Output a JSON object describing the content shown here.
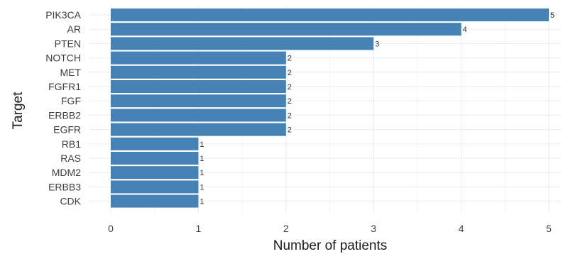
{
  "chart_data": {
    "type": "bar",
    "orientation": "horizontal",
    "title": "",
    "categories": [
      "PIK3CA",
      "AR",
      "PTEN",
      "NOTCH",
      "MET",
      "FGFR1",
      "FGF",
      "ERBB2",
      "EGFR",
      "RB1",
      "RAS",
      "MDM2",
      "ERBB3",
      "CDK"
    ],
    "values": [
      5,
      4,
      3,
      2,
      2,
      2,
      2,
      2,
      2,
      1,
      1,
      1,
      1,
      1
    ],
    "xlabel": "Number of patients",
    "ylabel": "Target",
    "xlim": [
      0,
      5
    ],
    "xticks": [
      0,
      1,
      2,
      3,
      4,
      5
    ],
    "grid": true,
    "bar_color": "#4682b4"
  }
}
